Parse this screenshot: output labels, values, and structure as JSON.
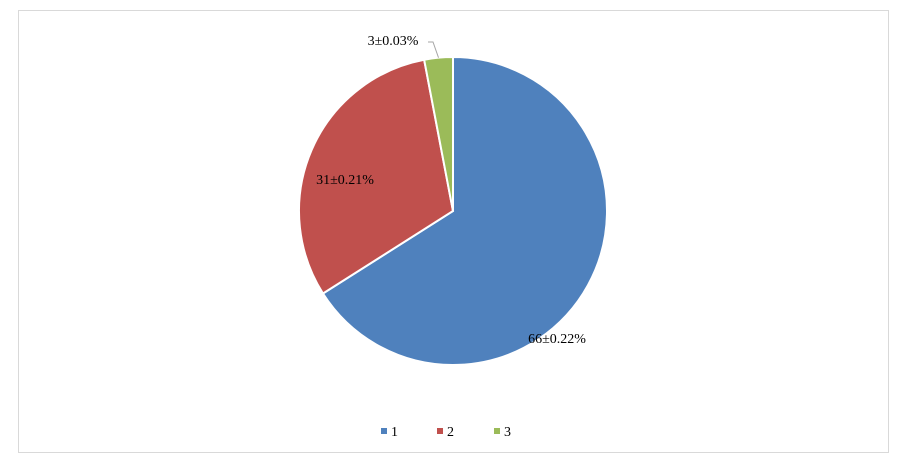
{
  "chart_data": {
    "type": "pie",
    "categories": [
      "1",
      "2",
      "3"
    ],
    "values": [
      66,
      31,
      3
    ],
    "value_labels": [
      "66±0.22%",
      "31±0.21%",
      "3±0.03%"
    ],
    "colors": [
      "#4f81bd",
      "#c0504d",
      "#9bbb59"
    ],
    "legend": "bottom"
  }
}
